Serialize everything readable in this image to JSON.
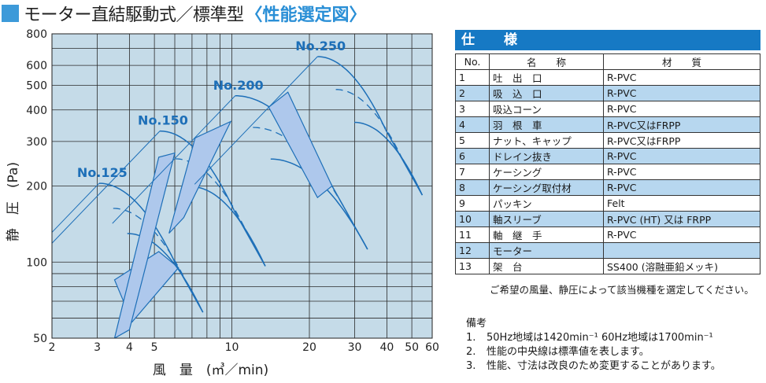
{
  "title": {
    "main": "モーター直結駆動式／標準型",
    "accent": "〈性能選定図〉",
    "accent_color": "#2a8fd6",
    "square_color": "#3d9ad9"
  },
  "chart_data": {
    "type": "line",
    "x_scale": "log",
    "y_scale": "log",
    "xlabel": "風　量　(㎥／min)",
    "ylabel": "静　圧　(Pa)",
    "xlim": [
      2,
      60
    ],
    "ylim": [
      50,
      800
    ],
    "x_ticks": [
      2,
      3,
      4,
      5,
      10,
      20,
      30,
      40,
      50,
      60
    ],
    "y_ticks": [
      50,
      100,
      200,
      300,
      400,
      500,
      600,
      800
    ],
    "grid": true,
    "plot_bg": "#c5dbe8",
    "line_color": "#1d6fb8",
    "band_color": "#aec8ec",
    "models": [
      {
        "name": "No.125",
        "apex": [
          3.05,
          205
        ],
        "right_end": [
          6.0,
          100
        ],
        "bottom_offset": 1.58,
        "band": [
          [
            3.5,
            85
          ],
          [
            5.2,
            110
          ],
          [
            6.2,
            95
          ],
          [
            4.1,
            58
          ]
        ]
      },
      {
        "name": "No.150",
        "apex": [
          5.25,
          330
        ],
        "right_end": [
          10.2,
          160
        ],
        "bottom_offset": 1.66,
        "band": [
          [
            3.5,
            50
          ],
          [
            4.0,
            54
          ],
          [
            6.0,
            270
          ],
          [
            5.2,
            260
          ]
        ]
      },
      {
        "name": "No.200",
        "apex": [
          10.3,
          455
        ],
        "right_end": [
          24.5,
          200
        ],
        "bottom_offset": 1.78,
        "band": [
          [
            7.2,
            310
          ],
          [
            9.9,
            360
          ],
          [
            6.5,
            150
          ],
          [
            5.7,
            130
          ]
        ]
      },
      {
        "name": "No.250",
        "apex": [
          21.5,
          650
        ],
        "right_end": [
          39.5,
          335
        ],
        "bottom_offset": 1.82,
        "band": [
          [
            13.9,
            410
          ],
          [
            16.5,
            470
          ],
          [
            24.5,
            200
          ],
          [
            21.5,
            180
          ]
        ]
      }
    ]
  },
  "spec": {
    "header": "仕　様",
    "columns": [
      "No.",
      "名　　称",
      "材　　質"
    ],
    "rows": [
      {
        "no": "1",
        "name": "吐　出　口",
        "material": "R-PVC",
        "shaded": false
      },
      {
        "no": "2",
        "name": "吸　込　口",
        "material": "R-PVC",
        "shaded": true
      },
      {
        "no": "3",
        "name": "吸込コーン",
        "material": "R-PVC",
        "shaded": false
      },
      {
        "no": "4",
        "name": "羽　根　車",
        "material": "R-PVC又はFRPP",
        "shaded": true
      },
      {
        "no": "5",
        "name": "ナット、キャップ",
        "material": "R-PVC又はFRPP",
        "shaded": false
      },
      {
        "no": "6",
        "name": "ドレイン抜き",
        "material": "R-PVC",
        "shaded": true
      },
      {
        "no": "7",
        "name": "ケーシング",
        "material": "R-PVC",
        "shaded": false
      },
      {
        "no": "8",
        "name": "ケーシング取付材",
        "material": "R-PVC",
        "shaded": true
      },
      {
        "no": "9",
        "name": "パッキン",
        "material": "Felt",
        "shaded": false
      },
      {
        "no": "10",
        "name": "軸スリーブ",
        "material": "R-PVC (HT) 又は FRPP",
        "shaded": true
      },
      {
        "no": "11",
        "name": "軸　継　手",
        "material": "R-PVC",
        "shaded": false
      },
      {
        "no": "12",
        "name": "モーター",
        "material": "",
        "shaded": true
      },
      {
        "no": "13",
        "name": "架　台",
        "material": "SS400 (溶融亜鉛メッキ)",
        "shaded": false
      }
    ],
    "note": "ご希望の風量、静圧によって該当機種を選定してください。"
  },
  "remarks": {
    "heading": "備考",
    "items": [
      {
        "num": "1.",
        "text": "50Hz地域は1420min⁻¹ 60Hz地域は1700min⁻¹"
      },
      {
        "num": "2.",
        "text": "性能の中央線は標準値を表します。"
      },
      {
        "num": "3.",
        "text": "性能、寸法は改良のため変更することがあります。"
      }
    ]
  }
}
